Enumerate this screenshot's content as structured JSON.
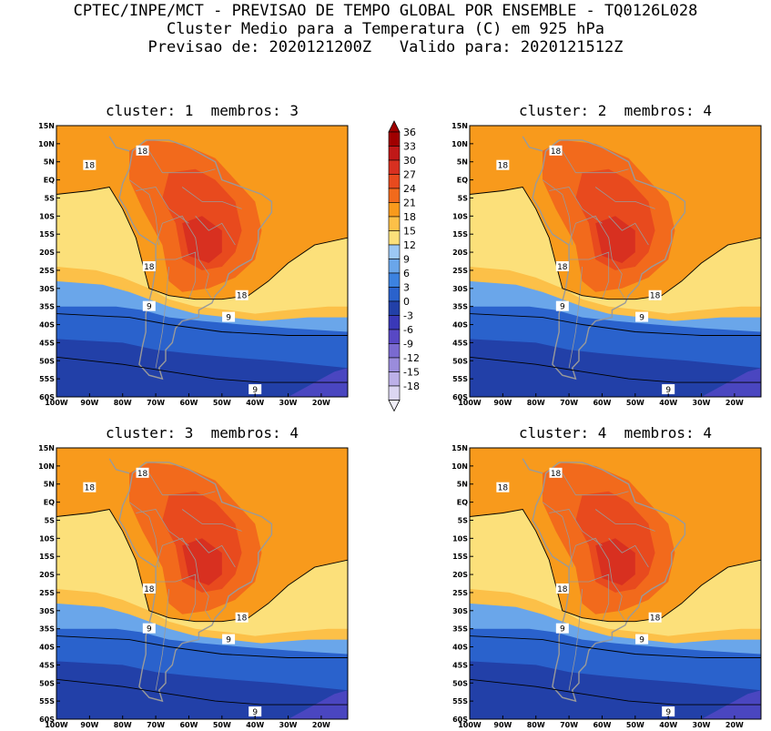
{
  "header": {
    "line1": "CPTEC/INPE/MCT - PREVISAO DE TEMPO GLOBAL POR ENSEMBLE - TQ0126L028",
    "line2": "Cluster Medio para a Temperatura (C) em 925 hPa",
    "line3": "Previsao de: 2020121200Z   Valido para: 2020121512Z"
  },
  "panels": [
    {
      "title": "cluster: 1  membros: 3"
    },
    {
      "title": "cluster: 2  membros: 4"
    },
    {
      "title": "cluster: 3  membros: 4"
    },
    {
      "title": "cluster: 4  membros: 4"
    }
  ],
  "lat_ticks": [
    "15N",
    "10N",
    "5N",
    "EQ",
    "5S",
    "10S",
    "15S",
    "20S",
    "25S",
    "30S",
    "35S",
    "40S",
    "45S",
    "50S",
    "55S",
    "60S"
  ],
  "lon_ticks": [
    "100W",
    "90W",
    "80W",
    "70W",
    "60W",
    "50W",
    "40W",
    "30W",
    "20W"
  ],
  "contour_labels": [
    "18",
    "18",
    "18",
    "18",
    "9",
    "9",
    "9"
  ],
  "colorbar": {
    "labels": [
      "36",
      "33",
      "30",
      "27",
      "24",
      "21",
      "18",
      "15",
      "12",
      "9",
      "6",
      "3",
      "0",
      "-3",
      "-6",
      "-9",
      "-12",
      "-15",
      "-18"
    ],
    "colors": [
      "#a00000",
      "#c01818",
      "#d83020",
      "#e84a1e",
      "#f26a1c",
      "#f89a1c",
      "#fcc048",
      "#fce07a",
      "#9cc8f4",
      "#6aa6ea",
      "#3c82e0",
      "#2a62cc",
      "#2240a8",
      "#3a38b8",
      "#5848c4",
      "#7a6ad0",
      "#9a8cdc",
      "#bcb0e8",
      "#dcd6f2"
    ]
  },
  "map_colors": {
    "c_le_m3": "#4a46c0",
    "c0": "#2240a8",
    "c3": "#2a62cc",
    "c6": "#3c82e0",
    "c9": "#6aa6ea",
    "c12": "#fce07a",
    "c15": "#fcc048",
    "c18": "#f89a1c",
    "c21": "#f26a1c",
    "c24": "#e84a1e",
    "c27": "#d83020",
    "land": "#9a9a9a"
  }
}
